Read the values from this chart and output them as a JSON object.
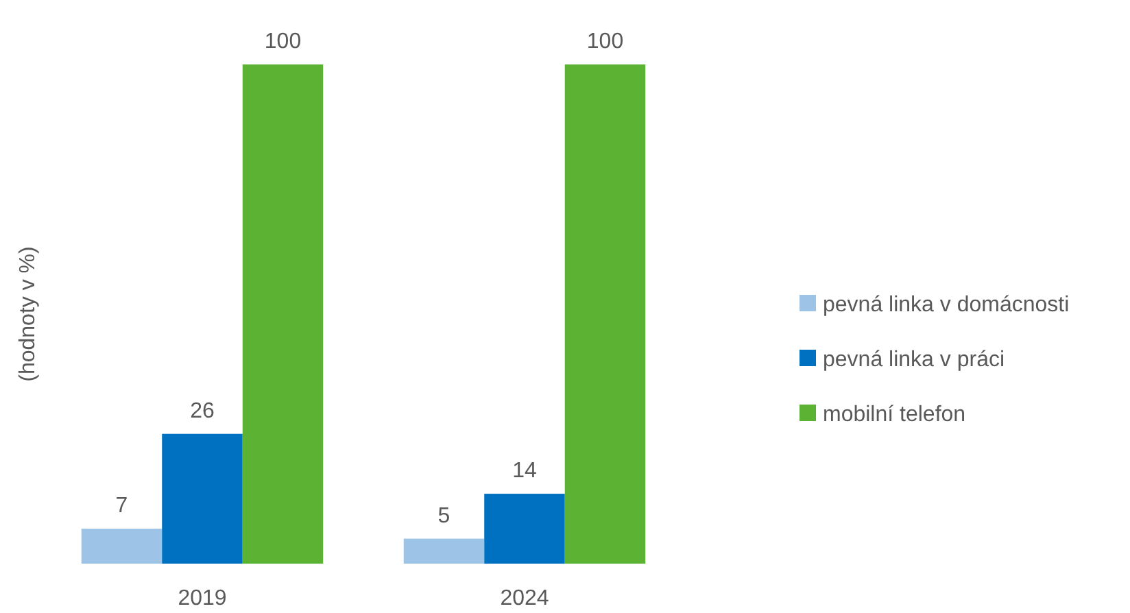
{
  "chart_data": {
    "type": "bar",
    "ylabel": "(hodnoty v %)",
    "categories": [
      "2019",
      "2024"
    ],
    "series": [
      {
        "name": "pevná linka v domácnosti",
        "color": "#9dc3e6",
        "values": [
          7,
          5
        ]
      },
      {
        "name": "pevná linka v práci",
        "color": "#0070c0",
        "values": [
          26,
          14
        ]
      },
      {
        "name": "mobilní telefon",
        "color": "#5bb233",
        "values": [
          100,
          100
        ]
      }
    ],
    "data_labels": true,
    "legend": "right"
  }
}
